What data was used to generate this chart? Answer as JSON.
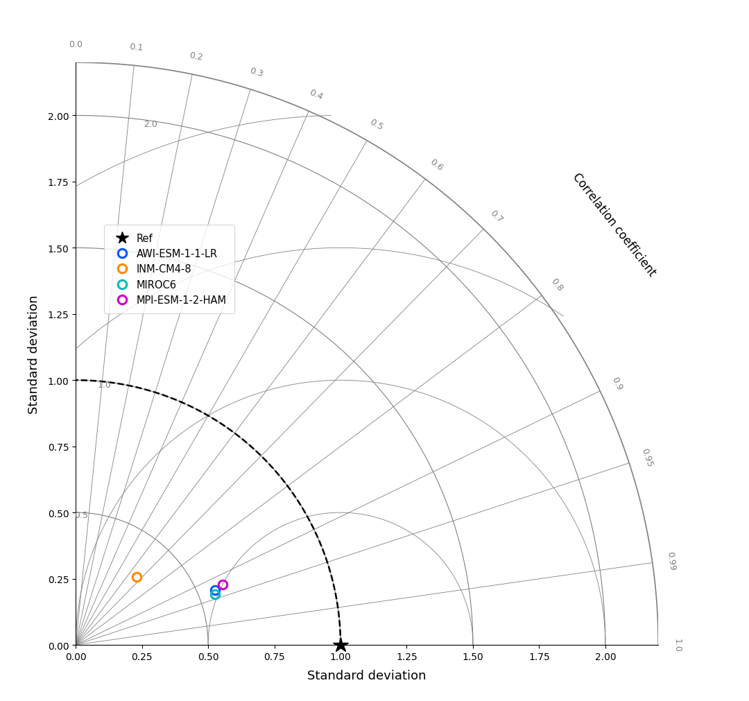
{
  "xlabel": "Standard deviation",
  "ylabel": "Standard deviation",
  "corr_label": "Correlation coefficient",
  "std_max": 2.2,
  "ref_std": 1.0,
  "models": [
    {
      "name": "AWI-ESM-1-1-LR",
      "std": 0.565,
      "corr": 0.93,
      "color": "#0055ff"
    },
    {
      "name": "INM-CM4-8",
      "std": 0.345,
      "corr": 0.67,
      "color": "#ff8800"
    },
    {
      "name": "MIROC6",
      "std": 0.56,
      "corr": 0.94,
      "color": "#00bbbb"
    },
    {
      "name": "MPI-ESM-1-2-HAM",
      "std": 0.6,
      "corr": 0.925,
      "color": "#cc00cc"
    }
  ],
  "corr_ticks": [
    0.0,
    0.1,
    0.2,
    0.3,
    0.4,
    0.5,
    0.6,
    0.7,
    0.8,
    0.9,
    0.95,
    0.99,
    1.0
  ],
  "std_arcs": [
    0.5,
    1.0,
    1.5,
    2.0
  ],
  "rmse_arcs": [
    0.5,
    1.0,
    1.5,
    2.0
  ],
  "tick_vals": [
    0.0,
    0.25,
    0.5,
    0.75,
    1.0,
    1.25,
    1.5,
    1.75,
    2.0
  ],
  "tick_labels": [
    "0.00",
    "0.25",
    "0.50",
    "0.75",
    "1.00",
    "1.25",
    "1.50",
    "1.75",
    "2.00"
  ]
}
